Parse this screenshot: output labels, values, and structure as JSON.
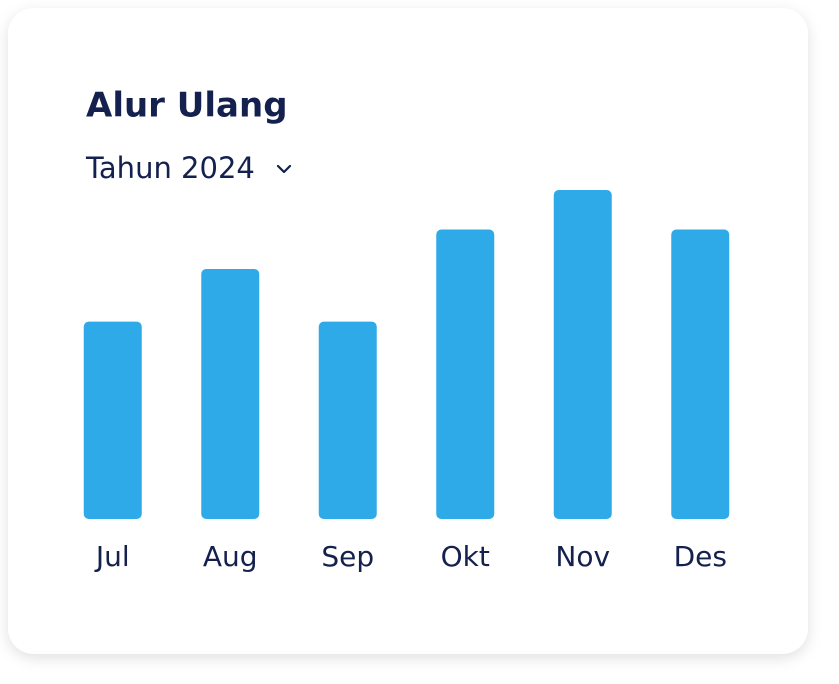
{
  "chart_data": {
    "type": "bar",
    "title": "Alur Ulang",
    "subtitle": "Tahun 2024",
    "categories": [
      "Jul",
      "Aug",
      "Sep",
      "Okt",
      "Nov",
      "Des"
    ],
    "values": [
      60,
      76,
      60,
      88,
      100,
      88
    ],
    "color": "#2eaae8",
    "ylim": [
      0,
      100
    ]
  }
}
